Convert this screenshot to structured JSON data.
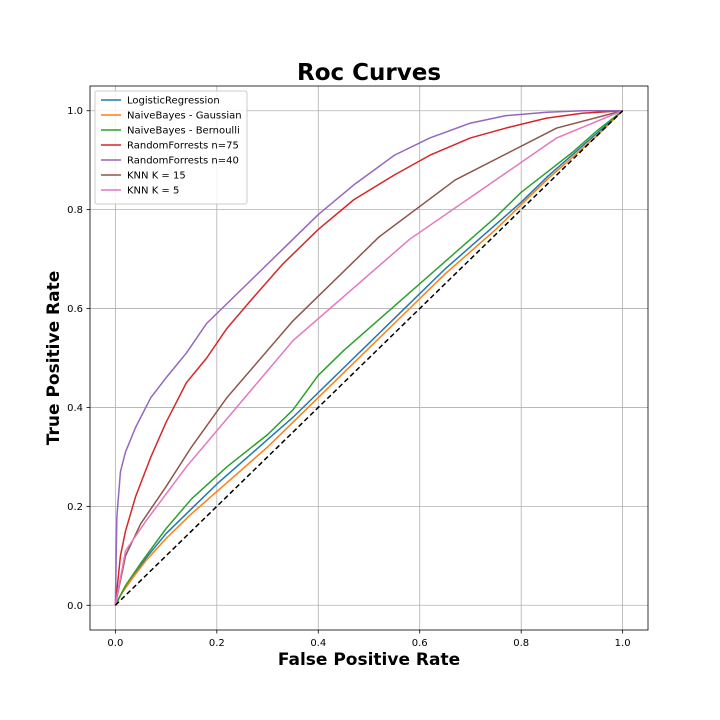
{
  "chart_data": {
    "type": "line",
    "title": "Roc Curves",
    "xlabel": "False Positive Rate",
    "ylabel": "True Positive Rate",
    "xlim": [
      -0.05,
      1.05
    ],
    "ylim": [
      -0.05,
      1.05
    ],
    "x_ticks": [
      "0.0",
      "0.2",
      "0.4",
      "0.6",
      "0.8",
      "1.0"
    ],
    "y_ticks": [
      "0.0",
      "0.2",
      "0.4",
      "0.6",
      "0.8",
      "1.0"
    ],
    "grid": true,
    "legend_position": "upper-left",
    "series": [
      {
        "name": "LogisticRegression",
        "color": "#1f77b4",
        "x": [
          0,
          0.01,
          0.03,
          0.06,
          0.1,
          0.15,
          0.2,
          0.25,
          0.3,
          0.35,
          0.4,
          0.45,
          0.5,
          0.55,
          0.6,
          0.65,
          0.7,
          0.75,
          0.8,
          0.85,
          0.9,
          0.95,
          1.0
        ],
        "y": [
          0,
          0.02,
          0.05,
          0.095,
          0.145,
          0.195,
          0.245,
          0.29,
          0.335,
          0.38,
          0.43,
          0.48,
          0.53,
          0.58,
          0.63,
          0.68,
          0.725,
          0.77,
          0.815,
          0.865,
          0.91,
          0.955,
          1.0
        ]
      },
      {
        "name": "NaiveBayes - Gaussian",
        "color": "#ff7f0e",
        "x": [
          0,
          0.01,
          0.03,
          0.06,
          0.1,
          0.15,
          0.2,
          0.25,
          0.3,
          0.35,
          0.4,
          0.45,
          0.5,
          0.55,
          0.6,
          0.65,
          0.7,
          0.75,
          0.8,
          0.85,
          0.9,
          0.95,
          1.0
        ],
        "y": [
          0,
          0.02,
          0.05,
          0.09,
          0.135,
          0.185,
          0.23,
          0.275,
          0.32,
          0.37,
          0.42,
          0.47,
          0.52,
          0.57,
          0.62,
          0.67,
          0.715,
          0.76,
          0.81,
          0.86,
          0.905,
          0.95,
          1.0
        ]
      },
      {
        "name": "NaiveBayes - Bernoulli",
        "color": "#2ca02c",
        "x": [
          0,
          0.02,
          0.05,
          0.1,
          0.15,
          0.22,
          0.3,
          0.35,
          0.4,
          0.45,
          0.5,
          0.55,
          0.6,
          0.65,
          0.7,
          0.75,
          0.8,
          0.85,
          0.9,
          0.95,
          1.0
        ],
        "y": [
          0,
          0.04,
          0.085,
          0.155,
          0.215,
          0.28,
          0.345,
          0.395,
          0.465,
          0.515,
          0.56,
          0.605,
          0.65,
          0.695,
          0.74,
          0.785,
          0.835,
          0.875,
          0.915,
          0.96,
          1.0
        ]
      },
      {
        "name": "RandomForrests n=75",
        "color": "#d62728",
        "x": [
          0,
          0.01,
          0.02,
          0.04,
          0.07,
          0.1,
          0.14,
          0.18,
          0.22,
          0.27,
          0.33,
          0.4,
          0.47,
          0.55,
          0.62,
          0.7,
          0.77,
          0.85,
          0.92,
          1.0
        ],
        "y": [
          0,
          0.1,
          0.15,
          0.22,
          0.3,
          0.37,
          0.45,
          0.5,
          0.56,
          0.62,
          0.69,
          0.76,
          0.82,
          0.87,
          0.91,
          0.945,
          0.965,
          0.985,
          0.995,
          1.0
        ]
      },
      {
        "name": "RandomForrests n=40",
        "color": "#9467bd",
        "x": [
          0,
          0.003,
          0.01,
          0.02,
          0.04,
          0.07,
          0.1,
          0.14,
          0.18,
          0.22,
          0.27,
          0.33,
          0.4,
          0.47,
          0.55,
          0.62,
          0.7,
          0.77,
          0.85,
          0.92,
          1.0
        ],
        "y": [
          0,
          0.18,
          0.27,
          0.31,
          0.36,
          0.42,
          0.46,
          0.51,
          0.57,
          0.61,
          0.66,
          0.72,
          0.79,
          0.85,
          0.91,
          0.945,
          0.975,
          0.99,
          0.997,
          1.0,
          1.0
        ]
      },
      {
        "name": "KNN K = 15",
        "color": "#8c564b",
        "x": [
          0,
          0.02,
          0.05,
          0.1,
          0.15,
          0.22,
          0.35,
          0.52,
          0.67,
          0.87,
          1.0
        ],
        "y": [
          0,
          0.1,
          0.165,
          0.24,
          0.32,
          0.42,
          0.575,
          0.745,
          0.86,
          0.965,
          1.0
        ]
      },
      {
        "name": "KNN K = 5",
        "color": "#e377c2",
        "x": [
          0,
          0.02,
          0.06,
          0.14,
          0.35,
          0.58,
          0.87,
          1.0
        ],
        "y": [
          0,
          0.11,
          0.17,
          0.28,
          0.535,
          0.74,
          0.945,
          1.0
        ]
      },
      {
        "name": "",
        "color": "#000000",
        "dashed": true,
        "x": [
          0,
          1
        ],
        "y": [
          0,
          1
        ]
      }
    ]
  }
}
